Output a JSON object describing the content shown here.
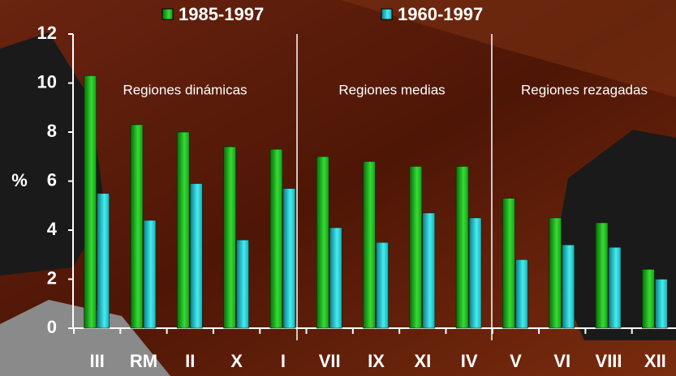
{
  "chart_data": {
    "type": "bar",
    "y_label": "%",
    "categories": [
      "III",
      "RM",
      "II",
      "X",
      "I",
      "VII",
      "IX",
      "XI",
      "IV",
      "V",
      "VI",
      "VIII",
      "XII"
    ],
    "series": [
      {
        "name": "1985-1997",
        "color": "#22cc22",
        "values": [
          10.3,
          8.3,
          8.0,
          7.4,
          7.3,
          7.0,
          6.8,
          6.6,
          6.6,
          5.3,
          4.5,
          4.3,
          2.4
        ]
      },
      {
        "name": "1960-1997",
        "color": "#22dddd",
        "values": [
          5.5,
          4.4,
          5.9,
          3.6,
          5.7,
          4.1,
          3.5,
          4.7,
          4.5,
          2.8,
          3.4,
          3.3,
          2.0
        ]
      }
    ],
    "annotations": [
      "Regiones dinámicas",
      "Regiones medias",
      "Regiones rezagadas"
    ],
    "ylim": [
      0,
      12
    ],
    "yticks": [
      0,
      2,
      4,
      6,
      8,
      10,
      12
    ],
    "grid": false
  }
}
